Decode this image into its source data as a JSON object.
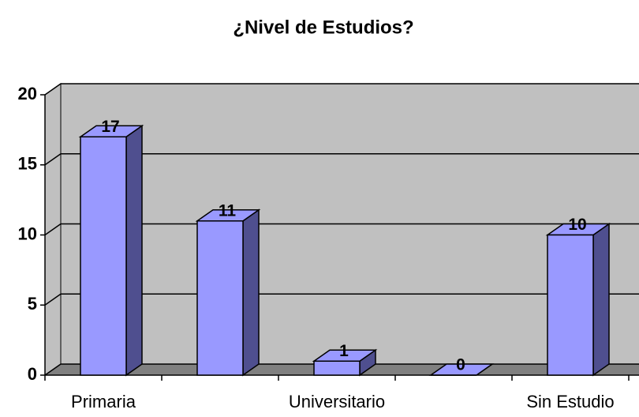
{
  "chart_data": {
    "type": "bar3d",
    "title": "¿Nivel de Estudios?",
    "categories": [
      "Primaria",
      null,
      "Universitario",
      null,
      "Sin Estudio"
    ],
    "values": [
      17,
      11,
      1,
      0,
      10
    ],
    "color": "#9999ff",
    "ylim": [
      0,
      20
    ],
    "yticks": [
      0,
      5,
      10,
      15,
      20
    ],
    "grid": true
  }
}
